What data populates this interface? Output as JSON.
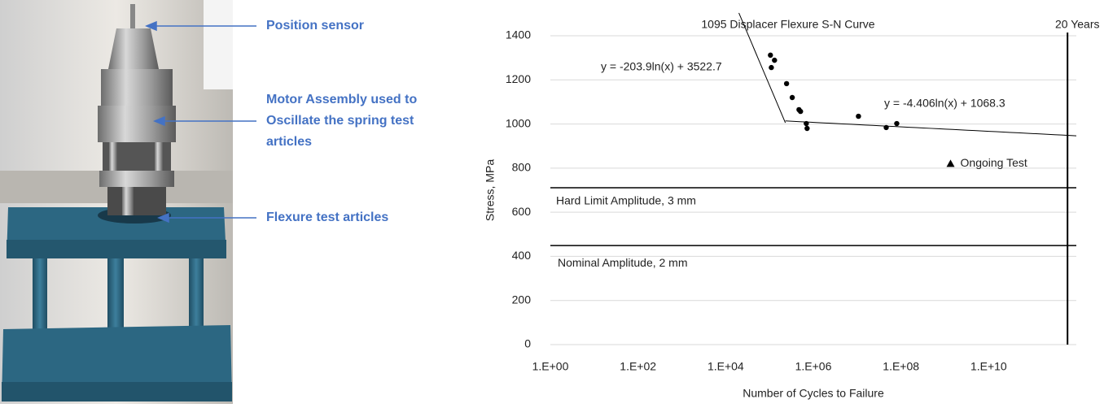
{
  "annotations": [
    {
      "lines": [
        "Position sensor"
      ]
    },
    {
      "lines": [
        "Motor Assembly used to",
        "Oscillate the spring test",
        "articles"
      ]
    },
    {
      "lines": [
        "Flexure test articles"
      ]
    }
  ],
  "chart_data": {
    "type": "scatter",
    "title": "1095 Displacer Flexure S-N Curve",
    "x_label": "Number of Cycles to Failure",
    "y_label": "Stress, MPa",
    "x_scale": "log",
    "grid": true,
    "color": "#000000",
    "x": [
      105000,
      130000,
      110000,
      245000,
      330000,
      470000,
      510000,
      690000,
      720000,
      10700000,
      46000000,
      80000000
    ],
    "values": [
      1312,
      1289,
      1256,
      1183,
      1120,
      1065,
      1057,
      1002,
      980,
      1035,
      984,
      1002
    ],
    "xlim": [
      1,
      1000000000000
    ],
    "ylim": [
      0,
      1400
    ],
    "xticks": [
      {
        "value": 1,
        "label": "1.E+00"
      },
      {
        "value": 100,
        "label": "1.E+02"
      },
      {
        "value": 10000,
        "label": "1.E+04"
      },
      {
        "value": 1000000,
        "label": "1.E+06"
      },
      {
        "value": 100000000,
        "label": "1.E+08"
      },
      {
        "value": 10000000000,
        "label": "1.E+10"
      }
    ],
    "yticks": [
      0,
      200,
      400,
      600,
      800,
      1000,
      1200,
      1400
    ],
    "trendlines": [
      {
        "label": "y = -203.9ln(x) + 3522.7",
        "slope": -203.9,
        "intercept": 3522.7,
        "x_range": [
          20000,
          230000
        ]
      },
      {
        "label": "y = -4.406ln(x) + 1068.3",
        "slope": -4.406,
        "intercept": 1068.3,
        "x_range": [
          230000,
          1000000000000
        ]
      }
    ],
    "hlines": [
      {
        "label": "Hard Limit Amplitude, 3 mm",
        "y": 711
      },
      {
        "label": "Nominal Amplitude, 2 mm",
        "y": 449
      }
    ],
    "vline": {
      "label": "20 Years",
      "x": 630000000000
    },
    "ongoing": {
      "label": "Ongoing Test",
      "x": 1350000000,
      "y": 820
    }
  }
}
